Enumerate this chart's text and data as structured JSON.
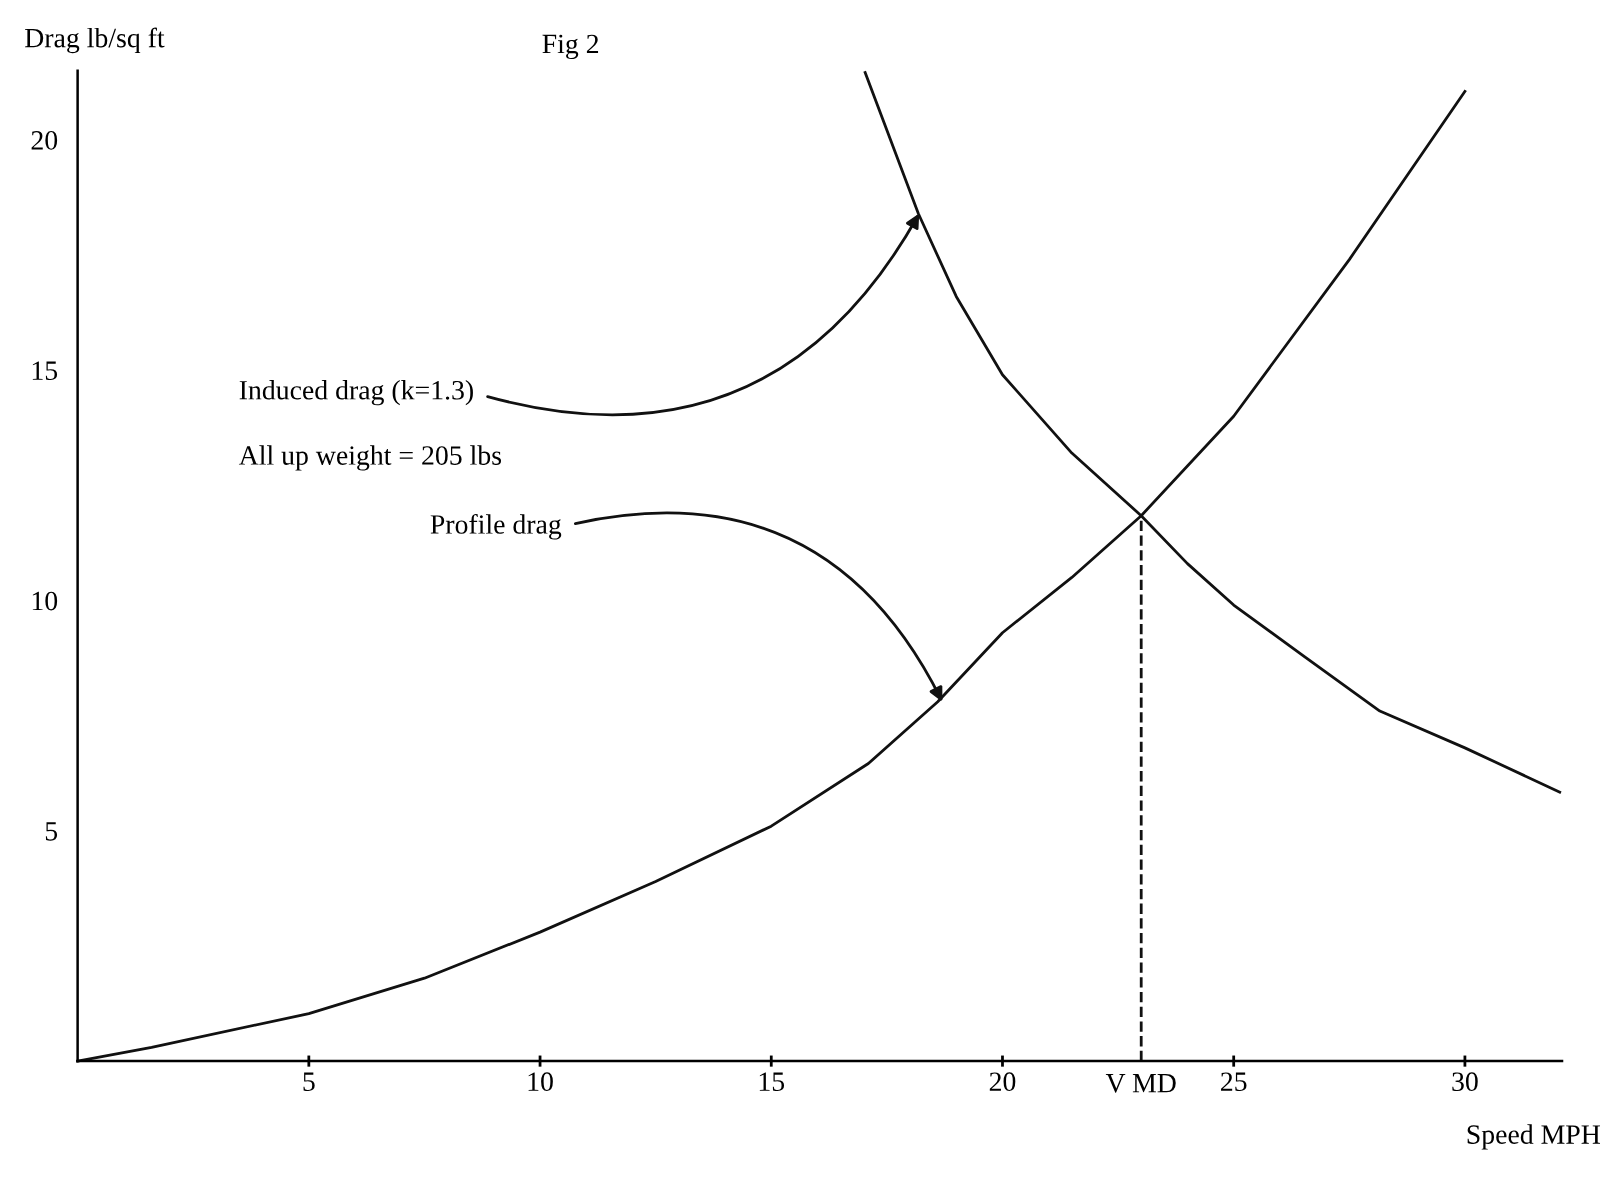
{
  "chart_data": {
    "type": "line",
    "title": "Fig 2",
    "xlabel": "Speed MPH",
    "ylabel": "Drag lb/sq ft",
    "xlim": [
      0,
      32.1
    ],
    "ylim": [
      0,
      21.5
    ],
    "xticks": [
      5,
      10,
      15,
      20,
      25,
      30
    ],
    "yticks": [
      5,
      10,
      15,
      20
    ],
    "grid": false,
    "legend": false,
    "marker": "none",
    "line_style": "solid",
    "series": [
      {
        "color": "#111111",
        "x": [
          0,
          1.6,
          5,
          7.5,
          10,
          12.5,
          15,
          17.1,
          18.6,
          20,
          21.5,
          23,
          25,
          27.5,
          30
        ],
        "values": [
          0,
          0.3,
          1.03,
          1.8,
          2.8,
          3.9,
          5.1,
          6.46,
          7.8,
          9.3,
          10.5,
          11.84,
          14.0,
          17.4,
          21.05
        ]
      },
      {
        "color": "#111111",
        "x": [
          17.03,
          18.18,
          19,
          20,
          21.5,
          23,
          24,
          25,
          26.5,
          28.16,
          30,
          32.05
        ],
        "values": [
          21.46,
          18.4,
          16.6,
          14.9,
          13.2,
          11.84,
          10.8,
          9.9,
          8.8,
          7.6,
          6.8,
          5.84
        ]
      }
    ],
    "ref_lines": [
      {
        "axis": "x",
        "value": 23,
        "label": "V MD",
        "line_style": "dashed",
        "color": "#111111"
      }
    ],
    "annotations": [
      {
        "text": "Induced drag (k=1.3)",
        "x": 18.2,
        "y": 18.4
      },
      "All up weight = 205 lbs",
      {
        "text": "Profile drag",
        "x": 18.7,
        "y": 7.8
      }
    ]
  }
}
